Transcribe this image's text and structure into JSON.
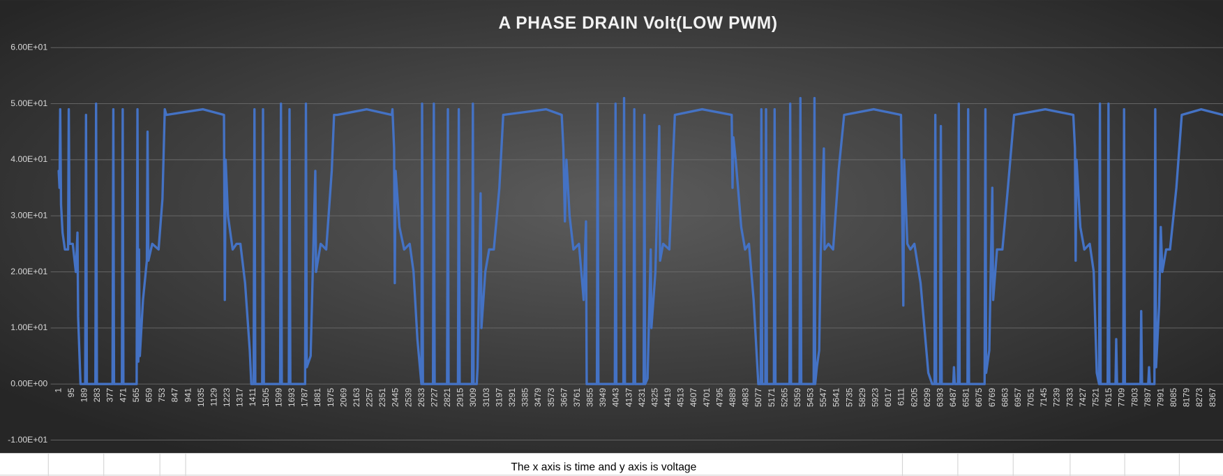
{
  "chart_data": {
    "type": "line",
    "title": "A PHASE DRAIN Volt(LOW PWM)",
    "x": [
      1,
      7,
      12,
      18,
      29,
      46,
      69,
      74,
      80,
      103,
      125,
      137,
      142,
      159,
      193,
      199,
      205,
      267,
      272,
      278,
      391,
      397,
      402,
      459,
      465,
      470,
      566,
      572,
      578,
      583,
      589,
      612,
      640,
      645,
      651,
      679,
      725,
      753,
      770,
      781,
      1047,
      1199,
      1205,
      1211,
      1228,
      1262,
      1290,
      1318,
      1352,
      1386,
      1397,
      1414,
      1420,
      1426,
      1476,
      1482,
      1488,
      1606,
      1612,
      1618,
      1669,
      1674,
      1680,
      1787,
      1793,
      1799,
      1827,
      1861,
      1866,
      1900,
      1940,
      1980,
      1997,
      2019,
      2234,
      2415,
      2420,
      2432,
      2437,
      2443,
      2471,
      2505,
      2545,
      2573,
      2601,
      2630,
      2635,
      2641,
      2714,
      2720,
      2726,
      2816,
      2822,
      2827,
      2895,
      2901,
      2907,
      2997,
      3003,
      3008,
      3031,
      3037,
      3059,
      3065,
      3093,
      3121,
      3155,
      3195,
      3223,
      3534,
      3647,
      3659,
      3670,
      3681,
      3704,
      3732,
      3772,
      3806,
      3823,
      3828,
      3902,
      3907,
      3913,
      4032,
      4037,
      4043,
      4094,
      4099,
      4105,
      4167,
      4173,
      4179,
      4241,
      4246,
      4252,
      4269,
      4292,
      4297,
      4326,
      4354,
      4360,
      4382,
      4427,
      4450,
      4467,
      4665,
      4879,
      4885,
      4891,
      4908,
      4948,
      4976,
      5004,
      5038,
      5072,
      5089,
      5094,
      5100,
      5123,
      5128,
      5134,
      5185,
      5190,
      5196,
      5298,
      5303,
      5309,
      5371,
      5377,
      5383,
      5473,
      5479,
      5484,
      5496,
      5513,
      5524,
      5547,
      5552,
      5580,
      5614,
      5654,
      5694,
      5908,
      6106,
      6112,
      6123,
      6129,
      6152,
      6174,
      6203,
      6248,
      6304,
      6332,
      6349,
      6355,
      6361,
      6389,
      6395,
      6401,
      6485,
      6490,
      6496,
      6519,
      6525,
      6531,
      6588,
      6593,
      6599,
      6712,
      6718,
      6723,
      6746,
      6768,
      6774,
      6802,
      6841,
      6881,
      6926,
      7152,
      7355,
      7367,
      7372,
      7378,
      7406,
      7435,
      7474,
      7503,
      7525,
      7542,
      7548,
      7553,
      7604,
      7610,
      7616,
      7661,
      7666,
      7672,
      7717,
      7723,
      7729,
      7842,
      7847,
      7853,
      7898,
      7904,
      7910,
      7943,
      7949,
      7955,
      7977,
      7989,
      8000,
      8028,
      8056,
      8102,
      8141,
      8282,
      8440
    ],
    "series": [
      {
        "color": "#4472c4",
        "values": [
          38,
          35,
          49,
          32,
          27,
          24,
          24,
          49,
          25,
          25,
          20,
          27,
          12,
          0,
          0,
          48,
          0,
          0,
          50,
          0,
          0,
          49,
          0,
          0,
          49,
          0,
          0,
          49,
          4,
          24,
          5,
          15,
          22,
          45,
          22,
          25,
          24,
          33,
          49,
          48,
          49,
          48,
          15,
          40,
          30,
          24,
          25,
          25,
          18,
          6,
          0,
          0,
          49,
          0,
          0,
          49,
          0,
          0,
          50,
          0,
          0,
          49,
          0,
          0,
          50,
          3,
          5,
          38,
          20,
          25,
          24,
          38,
          48,
          48,
          49,
          48,
          49,
          42,
          18,
          38,
          28,
          24,
          25,
          20,
          8,
          0,
          50,
          0,
          0,
          50,
          0,
          0,
          49,
          0,
          0,
          49,
          0,
          0,
          50,
          0,
          0,
          3,
          34,
          10,
          20,
          24,
          24,
          35,
          48,
          49,
          48,
          42,
          29,
          40,
          30,
          24,
          25,
          15,
          29,
          0,
          0,
          50,
          0,
          0,
          50,
          0,
          0,
          51,
          0,
          0,
          49,
          0,
          0,
          48,
          0,
          1,
          24,
          10,
          20,
          46,
          22,
          25,
          24,
          38,
          48,
          49,
          48,
          35,
          44,
          40,
          28,
          24,
          25,
          15,
          0,
          0,
          49,
          0,
          0,
          49,
          0,
          0,
          49,
          0,
          0,
          50,
          0,
          0,
          51,
          0,
          0,
          51,
          0,
          3,
          6,
          23,
          42,
          24,
          25,
          24,
          38,
          48,
          49,
          48,
          36,
          14,
          40,
          25,
          24,
          25,
          18,
          2,
          0,
          0,
          48,
          0,
          0,
          46,
          0,
          0,
          3,
          0,
          0,
          50,
          0,
          0,
          49,
          0,
          0,
          49,
          2,
          6,
          35,
          15,
          24,
          24,
          35,
          48,
          49,
          48,
          42,
          22,
          40,
          28,
          24,
          25,
          20,
          2,
          0,
          50,
          0,
          0,
          50,
          0,
          0,
          8,
          0,
          0,
          49,
          0,
          0,
          13,
          0,
          0,
          3,
          0,
          0,
          49,
          3,
          14,
          28,
          20,
          24,
          24,
          35,
          48,
          49,
          48
        ]
      }
    ],
    "xlim": [
      -40,
      8440
    ],
    "xticks": [
      1,
      95,
      189,
      283,
      377,
      471,
      565,
      659,
      753,
      847,
      941,
      1035,
      1129,
      1223,
      1317,
      1411,
      1505,
      1599,
      1693,
      1787,
      1881,
      1975,
      2069,
      2163,
      2257,
      2351,
      2445,
      2539,
      2633,
      2727,
      2821,
      2915,
      3009,
      3103,
      3197,
      3291,
      3385,
      3479,
      3573,
      3667,
      3761,
      3855,
      3949,
      4043,
      4137,
      4231,
      4325,
      4419,
      4513,
      4607,
      4701,
      4795,
      4889,
      4983,
      5077,
      5171,
      5265,
      5359,
      5453,
      5547,
      5641,
      5735,
      5829,
      5923,
      6017,
      6111,
      6205,
      6299,
      6393,
      6487,
      6581,
      6675,
      6769,
      6863,
      6957,
      7051,
      7145,
      7239,
      7333,
      7427,
      7521,
      7615,
      7709,
      7803,
      7897,
      7991,
      8085,
      8179,
      8273,
      8367
    ],
    "ylim": [
      -10,
      60
    ],
    "yticks": [
      {
        "value": -10,
        "label": "-1.00E+01"
      },
      {
        "value": 0,
        "label": "0.00E+00"
      },
      {
        "value": 10,
        "label": "1.00E+01"
      },
      {
        "value": 20,
        "label": "2.00E+01"
      },
      {
        "value": 30,
        "label": "3.00E+01"
      },
      {
        "value": 40,
        "label": "4.00E+01"
      },
      {
        "value": 50,
        "label": "5.00E+01"
      },
      {
        "value": 60,
        "label": "6.00E+01"
      }
    ],
    "grid": true
  },
  "spreadsheet": {
    "cell_text": "The x axis is time and y axis is voltage"
  }
}
